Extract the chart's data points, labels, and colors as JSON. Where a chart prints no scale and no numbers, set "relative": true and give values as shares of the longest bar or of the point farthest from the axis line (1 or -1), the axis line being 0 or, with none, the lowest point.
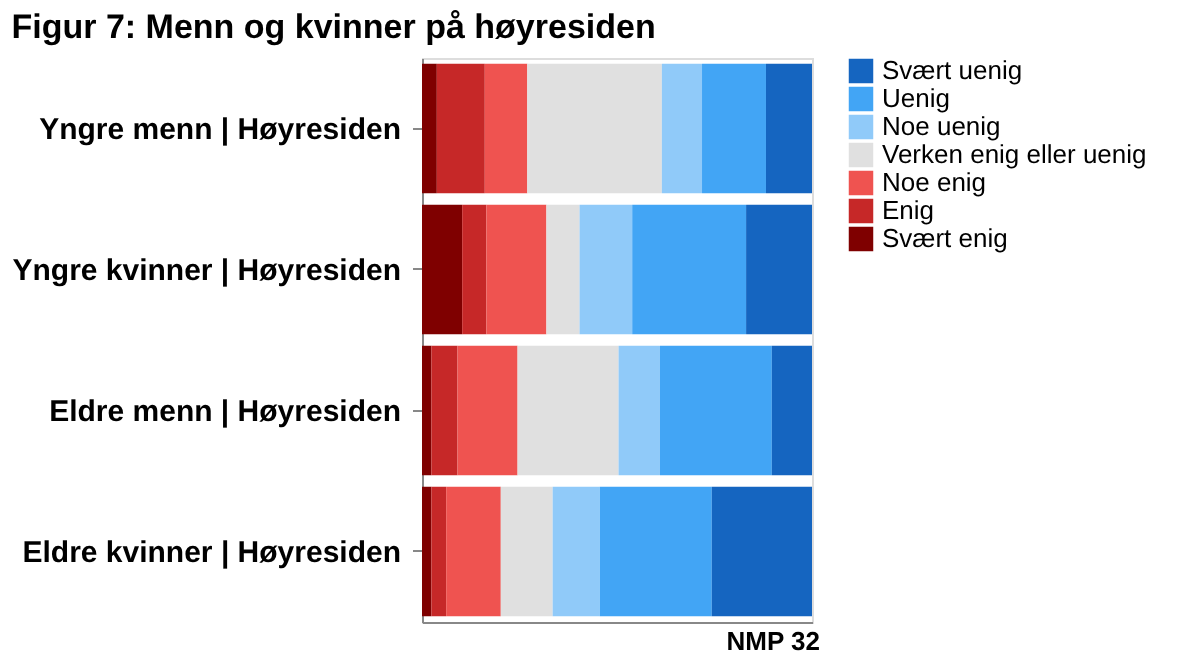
{
  "chart_data": {
    "type": "bar",
    "orientation": "horizontal",
    "stacked": true,
    "relative": true,
    "title": "Figur 7: Menn og kvinner på høyresiden",
    "categories": [
      "Yngre menn | Høyresiden",
      "Yngre kvinner | Høyresiden",
      "Eldre menn | Høyresiden",
      "Eldre kvinner | Høyresiden"
    ],
    "series": [
      {
        "name": "Svært enig",
        "color": "#7f0000",
        "values": [
          0.038,
          0.103,
          0.024,
          0.024
        ]
      },
      {
        "name": "Enig",
        "color": "#c62828",
        "values": [
          0.123,
          0.062,
          0.067,
          0.038
        ]
      },
      {
        "name": "Noe enig",
        "color": "#ef5350",
        "values": [
          0.109,
          0.154,
          0.154,
          0.14
        ]
      },
      {
        "name": "Verken enig eller uenig",
        "color": "#e0e0e0",
        "values": [
          0.345,
          0.085,
          0.259,
          0.133
        ]
      },
      {
        "name": "Noe uenig",
        "color": "#90caf9",
        "values": [
          0.103,
          0.135,
          0.106,
          0.121
        ]
      },
      {
        "name": "Uenig",
        "color": "#42a5f5",
        "values": [
          0.164,
          0.292,
          0.287,
          0.287
        ]
      },
      {
        "name": "Svært uenig",
        "color": "#1565c0",
        "values": [
          0.118,
          0.169,
          0.103,
          0.257
        ]
      }
    ],
    "legend": "right",
    "annotations": [
      "NMP 32"
    ]
  }
}
